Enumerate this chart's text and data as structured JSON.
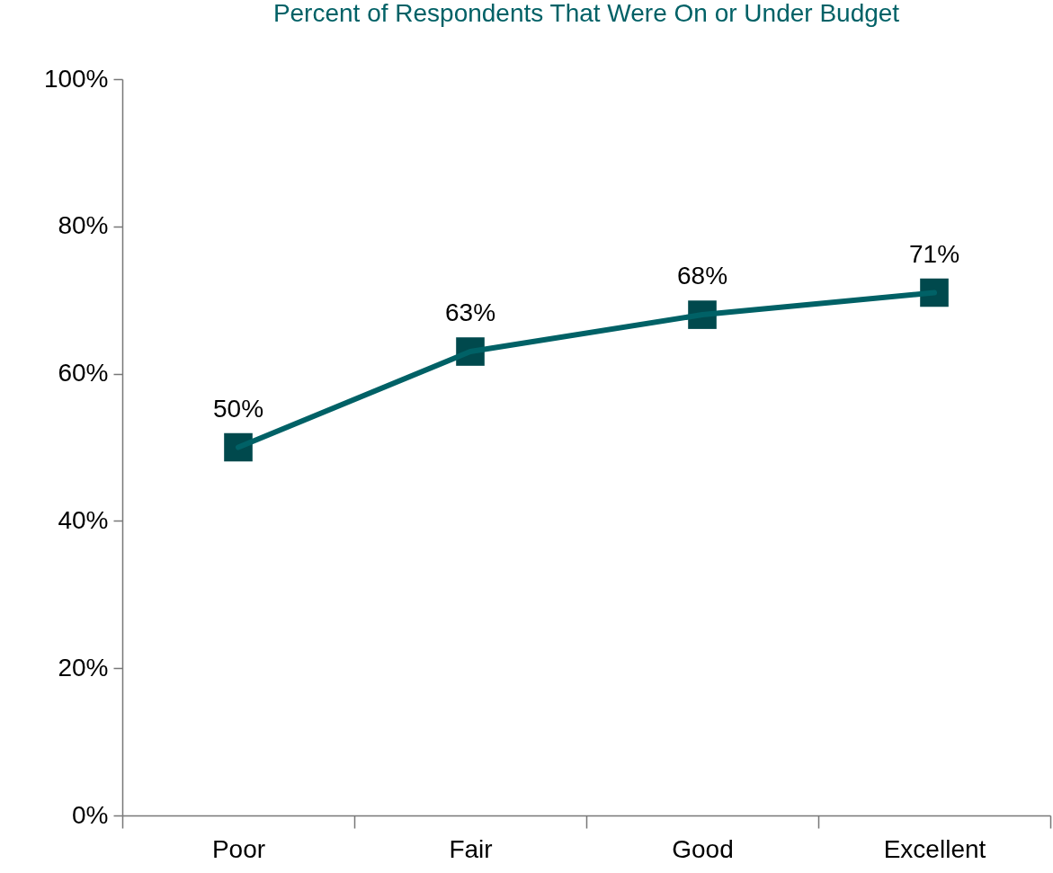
{
  "chart_data": {
    "type": "line",
    "title": "Percent of Respondents That Were On or Under Budget",
    "categories": [
      "Poor",
      "Fair",
      "Good",
      "Excellent"
    ],
    "values": [
      50,
      63,
      68,
      71
    ],
    "value_labels": [
      "50%",
      "63%",
      "68%",
      "71%"
    ],
    "color": "#006166",
    "marker": "square",
    "ylim": [
      0,
      100
    ],
    "yticks": [
      {
        "value": 0,
        "label": "0%"
      },
      {
        "value": 20,
        "label": "20%"
      },
      {
        "value": 40,
        "label": "40%"
      },
      {
        "value": 60,
        "label": "60%"
      },
      {
        "value": 80,
        "label": "80%"
      },
      {
        "value": 100,
        "label": "100%"
      }
    ]
  }
}
